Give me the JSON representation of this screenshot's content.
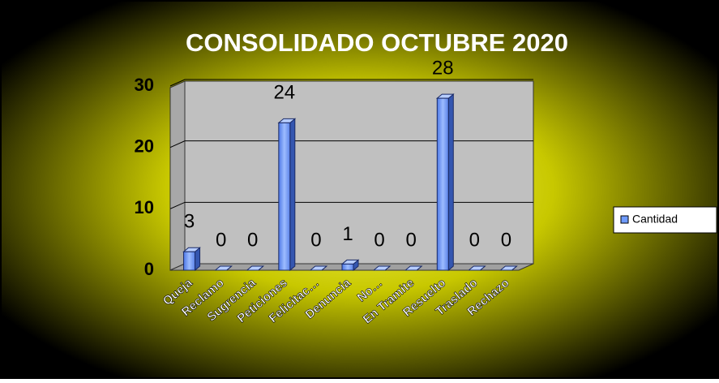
{
  "chart_data": {
    "type": "bar",
    "title": "CONSOLIDADO OCTUBRE 2020",
    "categories": [
      "Queja",
      "Reclamo",
      "Sugrencia",
      "Peticiones",
      "Felicitac…",
      "Denuncia",
      "No…",
      "En Tramite",
      "Resuelto",
      "Traslado",
      "Rechazo"
    ],
    "series": [
      {
        "name": "Cantidad",
        "color": "#6f9bff",
        "values": [
          3,
          0,
          0,
          24,
          0,
          1,
          0,
          0,
          28,
          0,
          0
        ]
      }
    ],
    "ylim": [
      0,
      30
    ],
    "yticks": [
      0,
      10,
      20,
      30
    ],
    "grid": true,
    "legend": "right"
  }
}
